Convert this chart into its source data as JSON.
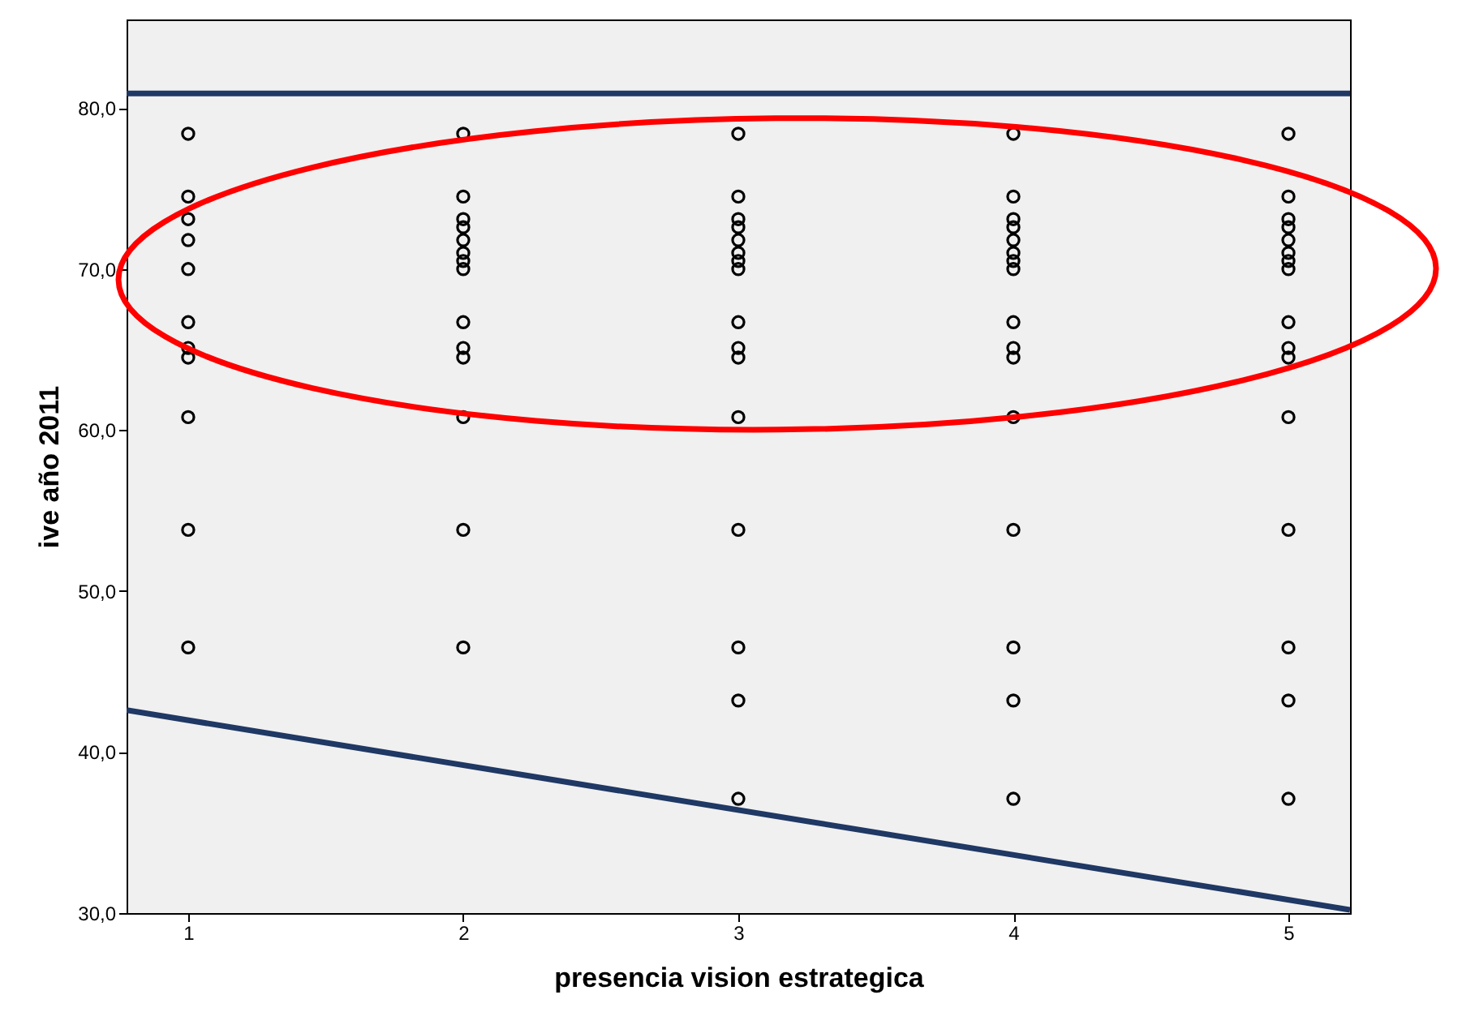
{
  "chart_data": {
    "type": "scatter",
    "xlabel": "presencia vision estrategica",
    "ylabel": "ive año 2011",
    "xlim": [
      0.776,
      5.224
    ],
    "xticks": [
      1,
      2,
      3,
      4,
      5
    ],
    "ylim": [
      30,
      85.5
    ],
    "yticks": [
      {
        "value": 30,
        "label": "30,0"
      },
      {
        "value": 40,
        "label": "40,0"
      },
      {
        "value": 50,
        "label": "50,0"
      },
      {
        "value": 60,
        "label": "60,0"
      },
      {
        "value": 70,
        "label": "70,0"
      },
      {
        "value": 80,
        "label": "80,0"
      }
    ],
    "grid": false,
    "series": [
      {
        "color": "#000000",
        "marker": "circle",
        "x": [
          1,
          1,
          1,
          1,
          1,
          1,
          1,
          1,
          1,
          1,
          1,
          2,
          2,
          2,
          2,
          2,
          2,
          2,
          2,
          2,
          2,
          2,
          2,
          2,
          2,
          3,
          3,
          3,
          3,
          3,
          3,
          3,
          3,
          3,
          3,
          3,
          3,
          3,
          3,
          3,
          3,
          4,
          4,
          4,
          4,
          4,
          4,
          4,
          4,
          4,
          4,
          4,
          4,
          4,
          4,
          4,
          4,
          5,
          5,
          5,
          5,
          5,
          5,
          5,
          5,
          5,
          5,
          5,
          5,
          5,
          5,
          5,
          5
        ],
        "values": [
          78.4,
          74.5,
          73.1,
          71.8,
          70.0,
          66.7,
          65.1,
          64.5,
          60.8,
          53.8,
          46.5,
          78.4,
          74.5,
          73.1,
          72.6,
          71.8,
          71.0,
          70.5,
          70.0,
          66.7,
          65.1,
          64.5,
          60.8,
          53.8,
          46.5,
          78.4,
          74.5,
          73.1,
          72.6,
          71.8,
          71.0,
          70.5,
          70.0,
          66.7,
          65.1,
          64.5,
          60.8,
          53.8,
          46.5,
          43.2,
          37.1,
          78.4,
          74.5,
          73.1,
          72.6,
          71.8,
          71.0,
          70.5,
          70.0,
          66.7,
          65.1,
          64.5,
          60.8,
          53.8,
          46.5,
          43.2,
          37.1,
          78.4,
          74.5,
          73.1,
          72.6,
          71.8,
          71.0,
          70.5,
          70.0,
          66.7,
          65.1,
          64.5,
          60.8,
          53.8,
          46.5,
          43.2,
          37.1
        ]
      },
      {
        "type": "line",
        "color": "#1f3864",
        "x": [
          0.776,
          5.224
        ],
        "values": [
          42.6,
          30.2
        ]
      }
    ],
    "ref_lines": [
      {
        "axis": "y",
        "value": 80.9,
        "color": "#1f3864"
      }
    ]
  }
}
